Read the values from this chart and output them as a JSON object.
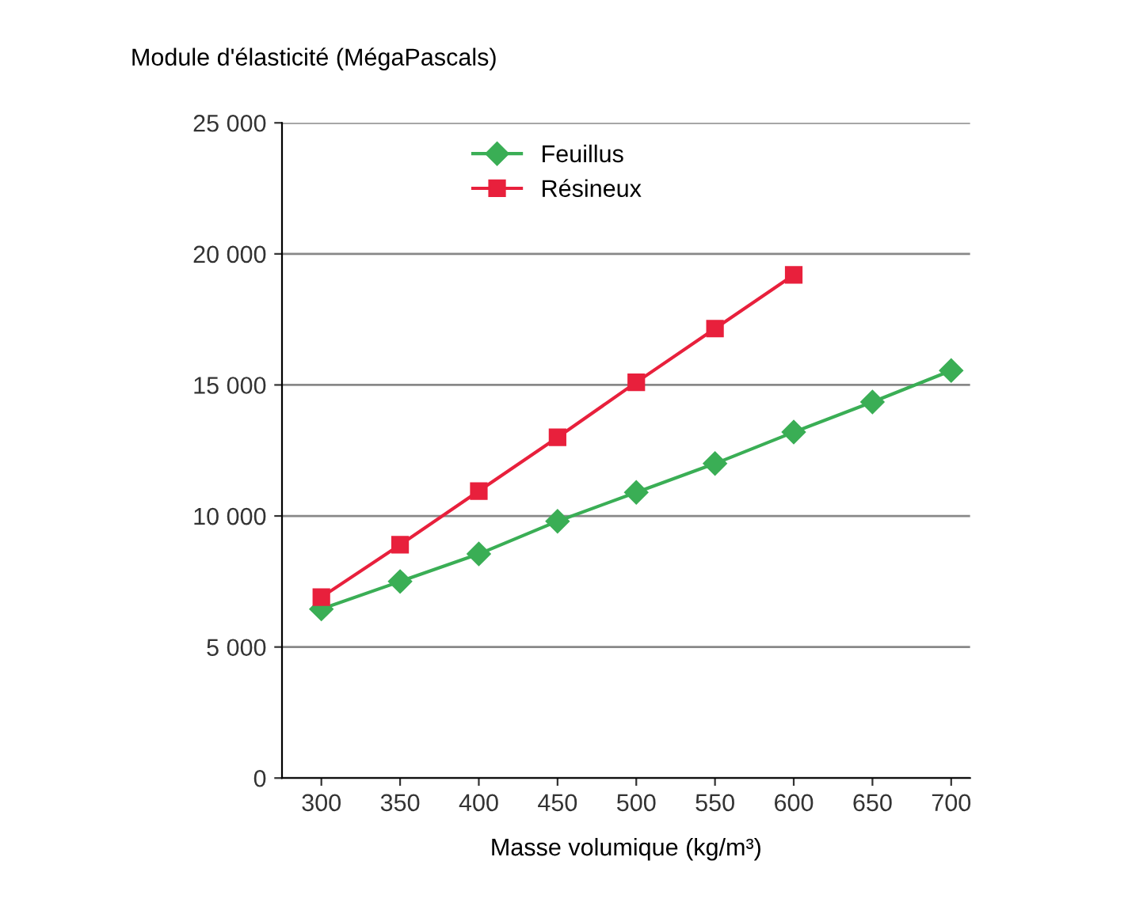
{
  "chart_data": {
    "type": "line",
    "ylabel": "Module d'élasticité (MégaPascals)",
    "xlabel": "Masse volumique (kg/m³)",
    "series": [
      {
        "name": "Feuillus",
        "color": "#3aae55",
        "marker": "diamond",
        "x": [
          300,
          350,
          400,
          450,
          500,
          550,
          600,
          650,
          700
        ],
        "values": [
          6450,
          7500,
          8550,
          9800,
          10900,
          12000,
          13200,
          14350,
          15550
        ]
      },
      {
        "name": "Résineux",
        "color": "#e8203c",
        "marker": "square",
        "x": [
          300,
          350,
          400,
          450,
          500,
          550,
          600
        ],
        "values": [
          6900,
          8900,
          10950,
          13000,
          15100,
          17150,
          19200
        ]
      }
    ],
    "xlim": [
      275,
      712
    ],
    "xticks": [
      300,
      350,
      400,
      450,
      500,
      550,
      600,
      650,
      700
    ],
    "ylim": [
      0,
      25000
    ],
    "yticks": [
      0,
      {
        "value": 5000,
        "label": "5 000"
      },
      {
        "value": 10000,
        "label": "10 000"
      },
      {
        "value": 15000,
        "label": "15 000"
      },
      {
        "value": 20000,
        "label": "20 000"
      },
      {
        "value": 25000,
        "label": "25 000"
      }
    ],
    "grid": "y",
    "legend": "top",
    "line_style": "solid"
  }
}
